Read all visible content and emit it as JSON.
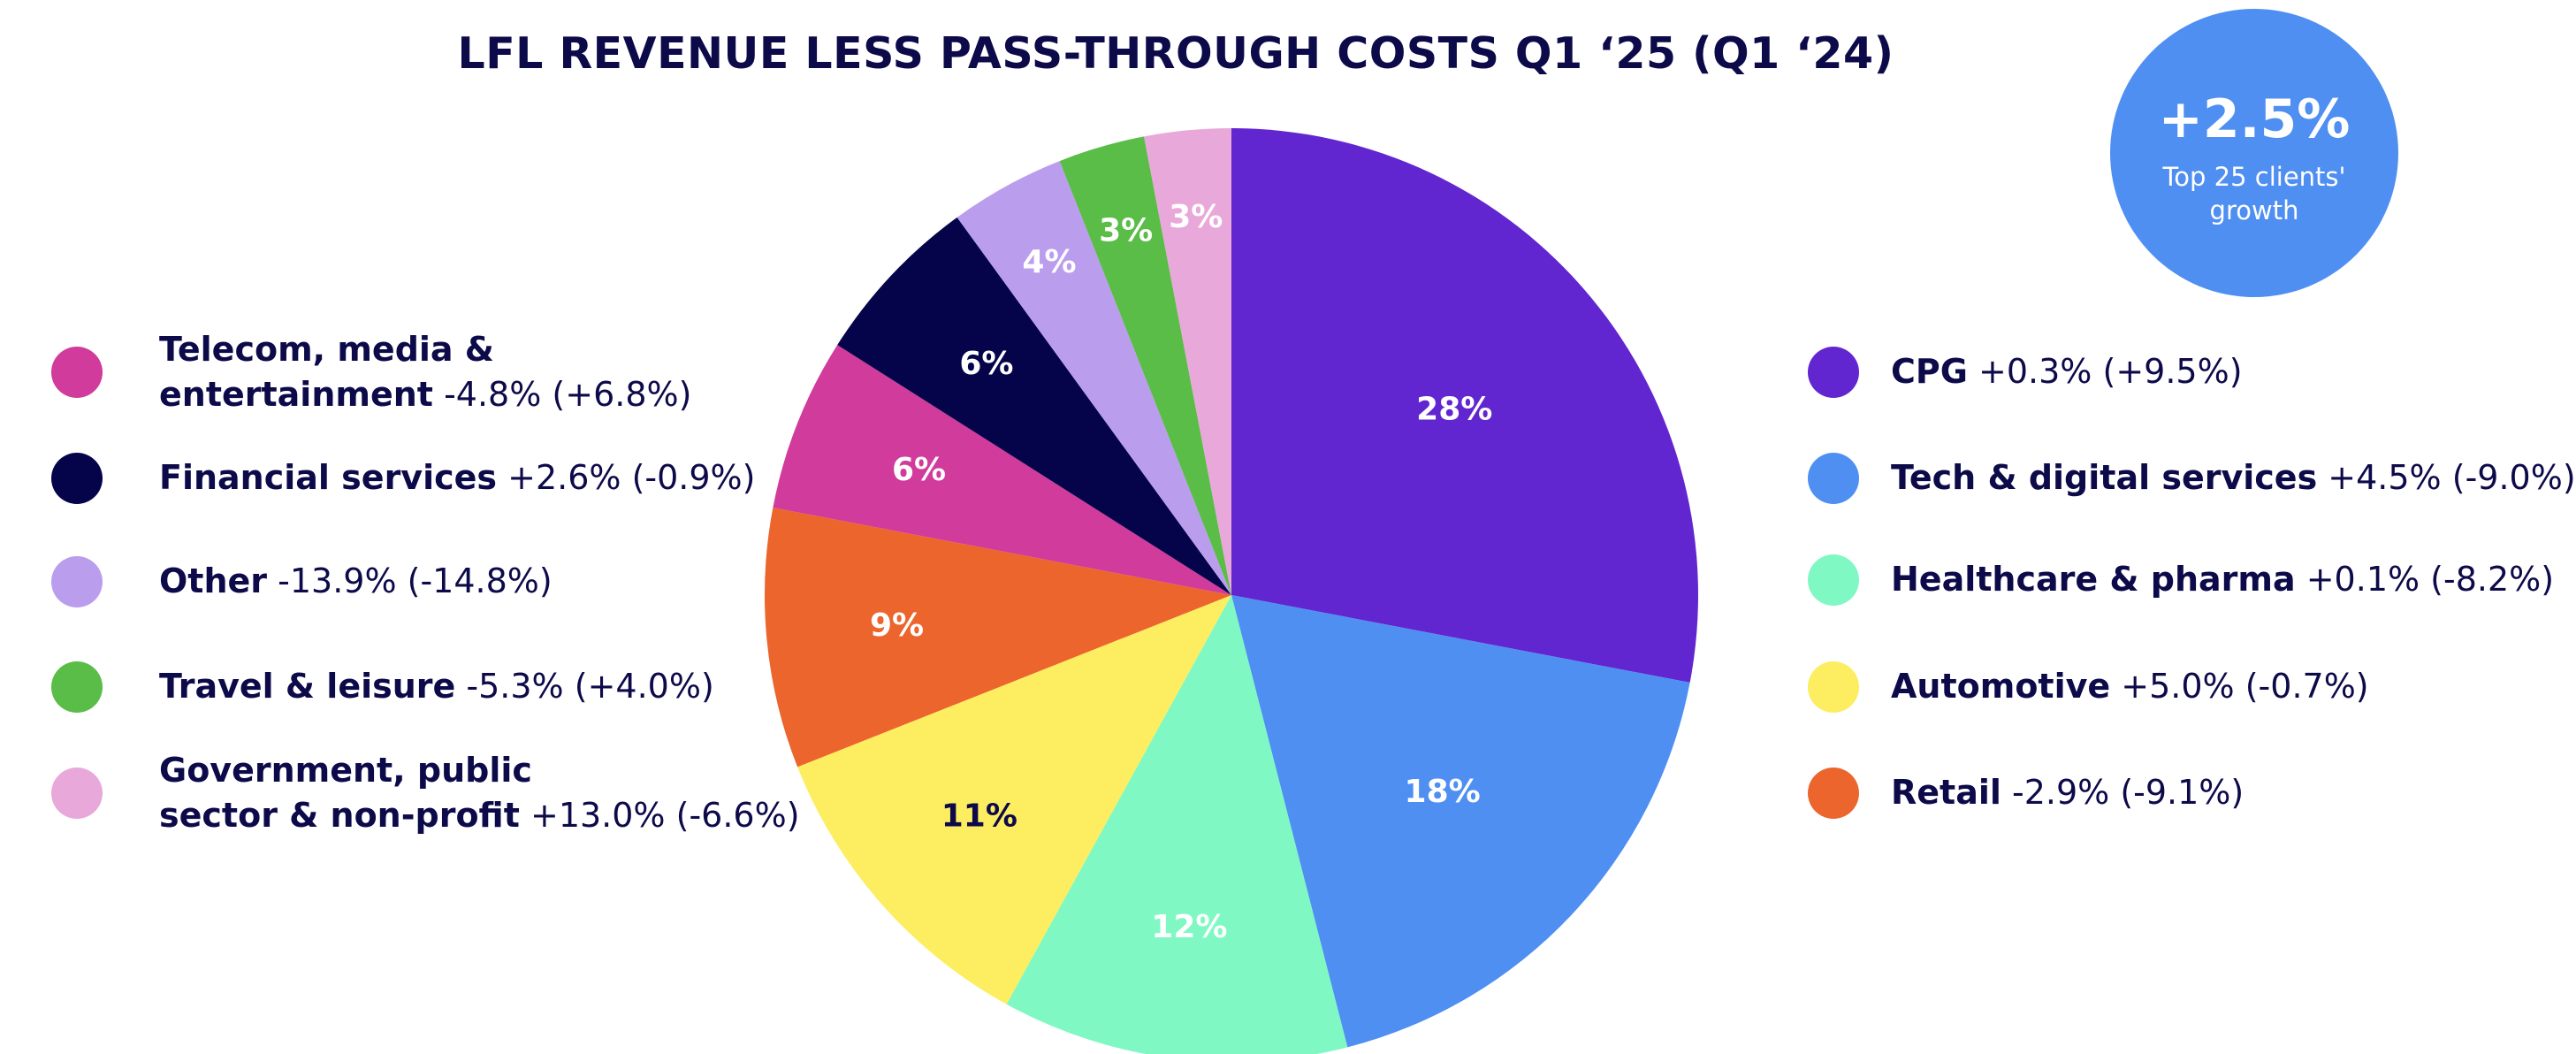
{
  "chart_data": {
    "type": "pie",
    "title": "LFL REVENUE LESS PASS-THROUGH COSTS  Q1 ‘25 (Q1 ‘24)",
    "slices": [
      {
        "name": "CPG",
        "value": 28,
        "label": "28%",
        "change": "+0.3%",
        "prior": "(+9.5%)",
        "color": "#6226d1",
        "label_color": "#ffffff"
      },
      {
        "name": "Tech & digital services",
        "value": 18,
        "label": "18%",
        "change": "+4.5%",
        "prior": "(-9.0%)",
        "color": "#4f8ff2",
        "label_color": "#ffffff"
      },
      {
        "name": "Healthcare & pharma",
        "value": 12,
        "label": "12%",
        "change": "+0.1%",
        "prior": "(-8.2%)",
        "color": "#7ff8c4",
        "label_color": "#ffffff"
      },
      {
        "name": "Automotive",
        "value": 11,
        "label": "11%",
        "change": "+5.0%",
        "prior": "(-0.7%)",
        "color": "#fcee60",
        "label_color": "#0d0a4a"
      },
      {
        "name": "Retail",
        "value": 9,
        "label": "9%",
        "change": "-2.9%",
        "prior": "(-9.1%)",
        "color": "#eb652d",
        "label_color": "#ffffff"
      },
      {
        "name": "Telecom, media & entertainment",
        "value": 6,
        "label": "6%",
        "change": "-4.8%",
        "prior": "(+6.8%)",
        "color": "#d03b9c",
        "label_color": "#ffffff"
      },
      {
        "name": "Financial services",
        "value": 6,
        "label": "6%",
        "change": "+2.6%",
        "prior": "(-0.9%)",
        "color": "#05044a",
        "label_color": "#ffffff"
      },
      {
        "name": "Other",
        "value": 4,
        "label": "4%",
        "change": "-13.9%",
        "prior": "(-14.8%)",
        "color": "#bb9ded",
        "label_color": "#ffffff"
      },
      {
        "name": "Travel & leisure",
        "value": 3,
        "label": "3%",
        "change": "-5.3%",
        "prior": "(+4.0%)",
        "color": "#5abd48",
        "label_color": "#ffffff"
      },
      {
        "name": "Government, public sector & non-profit",
        "value": 3,
        "label": "3%",
        "change": "+13.0%",
        "prior": "(-6.6%)",
        "color": "#e8a8d9",
        "label_color": "#ffffff"
      }
    ]
  },
  "legend": {
    "left": [
      {
        "line1": "Telecom, media &",
        "name": "entertainment",
        "values": "-4.8% (+6.8%)",
        "color": "#d03b9c"
      },
      {
        "line1": "",
        "name": "Financial services",
        "values": "+2.6% (-0.9%)",
        "color": "#05044a"
      },
      {
        "line1": "",
        "name": "Other",
        "values": "-13.9% (-14.8%)",
        "color": "#bb9ded"
      },
      {
        "line1": "",
        "name": "Travel & leisure",
        "values": "-5.3% (+4.0%)",
        "color": "#5abd48"
      },
      {
        "line1": "Government, public",
        "name": "sector & non-profit",
        "values": "+13.0% (-6.6%)",
        "color": "#e8a8d9"
      }
    ],
    "right": [
      {
        "line1": "",
        "name": "CPG",
        "values": "+0.3% (+9.5%)",
        "color": "#6226d1"
      },
      {
        "line1": "",
        "name": "Tech & digital services",
        "values": "+4.5% (-9.0%)",
        "color": "#4f8ff2"
      },
      {
        "line1": "",
        "name": "Healthcare & pharma",
        "values": "+0.1% (-8.2%)",
        "color": "#7ff8c4"
      },
      {
        "line1": "",
        "name": "Automotive",
        "values": "+5.0% (-0.7%)",
        "color": "#fcee60"
      },
      {
        "line1": "",
        "name": "Retail",
        "values": "-2.9% (-9.1%)",
        "color": "#eb652d"
      }
    ]
  },
  "badge": {
    "value": "+2.5%",
    "caption": "Top 25 clients' growth",
    "color": "#4f8ff2"
  }
}
